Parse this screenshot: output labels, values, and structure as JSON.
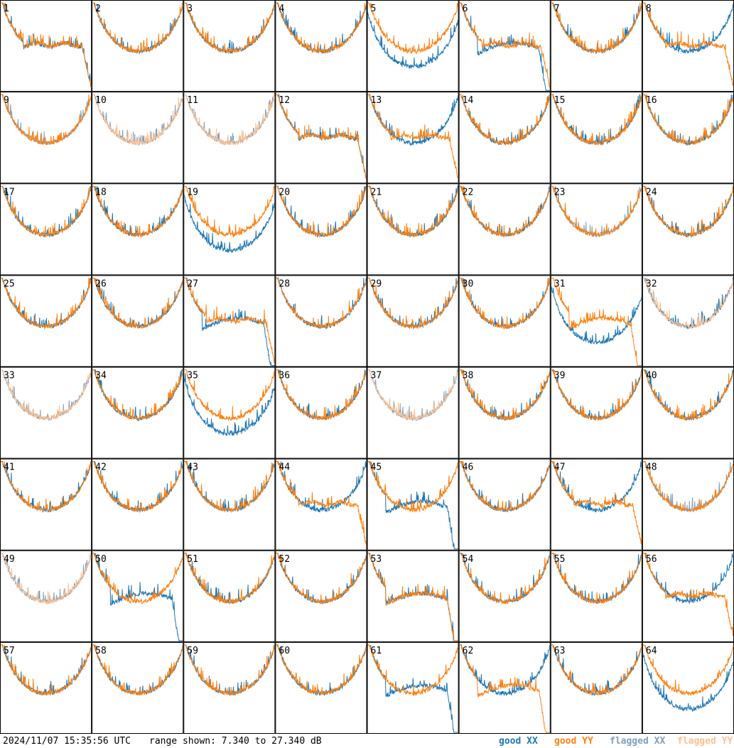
{
  "chart_data": {
    "type": "line",
    "title": "",
    "panels": [
      "1",
      "2",
      "3",
      "4",
      "5",
      "6",
      "7",
      "8",
      "9",
      "10",
      "11",
      "12",
      "13",
      "14",
      "15",
      "16",
      "17",
      "18",
      "19",
      "20",
      "21",
      "22",
      "23",
      "24",
      "25",
      "26",
      "27",
      "28",
      "29",
      "30",
      "31",
      "32",
      "33",
      "34",
      "35",
      "36",
      "37",
      "38",
      "39",
      "40",
      "41",
      "42",
      "43",
      "44",
      "45",
      "46",
      "47",
      "48",
      "49",
      "50",
      "51",
      "52",
      "53",
      "54",
      "55",
      "56",
      "57",
      "58",
      "59",
      "60",
      "61",
      "62",
      "63",
      "64"
    ],
    "ylim": [
      7.34,
      27.34
    ],
    "yunit": "dB",
    "series": [
      {
        "name": "good XX",
        "color": "#1f77b4"
      },
      {
        "name": "good YY",
        "color": "#ff7f0e"
      },
      {
        "name": "flagged XX",
        "color": "#7f9fbf"
      },
      {
        "name": "flagged YY",
        "color": "#ffc08f"
      }
    ],
    "flags": {
      "xx": [
        "9",
        "10",
        "11",
        "23",
        "33",
        "37",
        "48",
        "49"
      ],
      "yy": [
        "10",
        "11",
        "32",
        "33",
        "37",
        "49"
      ]
    },
    "legend_position": "bottom-right"
  },
  "footer": {
    "timestamp": "2024/11/07 15:35:56 UTC",
    "range_text": "range shown: 7.340 to 27.340 dB"
  },
  "legend": [
    "good XX",
    "good YY",
    "flagged XX",
    "flagged YY"
  ],
  "colors": {
    "good_xx": "#1f77b4",
    "good_yy": "#ff7f0e",
    "flagged_xx": "#7f9fbf",
    "flagged_yy": "#ffc08f",
    "grid_line": "#000000"
  }
}
